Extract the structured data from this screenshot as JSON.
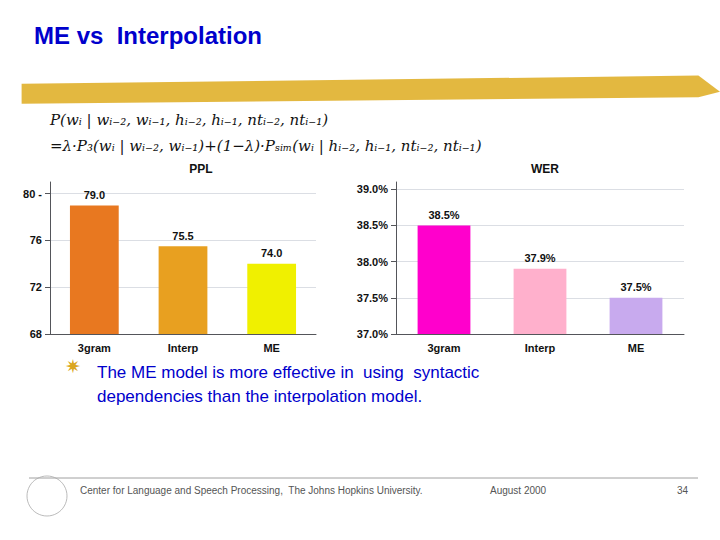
{
  "title": "ME vs  Interpolation",
  "annotations": [
    "P(wᵢ | wᵢ₋₂, wᵢ₋₁, hᵢ₋₂, hᵢ₋₁, ntᵢ₋₂, ntᵢ₋₁)",
    "=λ·P₃(wᵢ | wᵢ₋₂, wᵢ₋₁)+(1−λ)·Pₛᵢₘ(wᵢ | hᵢ₋₂, hᵢ₋₁, ntᵢ₋₂, ntᵢ₋₁)",
    "✷",
    "The ME model is more effective in  using  syntactic\ndependencies than the interpolation model.",
    "Center for Language and Speech Processing,  The Johns Hopkins University.",
    "August 2000",
    "34"
  ],
  "chart_data": [
    {
      "type": "bar",
      "title": "PPL",
      "categories": [
        "3gram",
        "Interp",
        "ME"
      ],
      "values": [
        79.0,
        75.5,
        74.0
      ],
      "value_labels": [
        "79.0",
        "75.5",
        "74.0"
      ],
      "colors": [
        "#E87820",
        "#E8A020",
        "#F0F000"
      ],
      "ylim": [
        68,
        81
      ],
      "yticks": [
        68,
        72,
        76,
        {
          "value": 80,
          "label": "80 -"
        }
      ],
      "grid": true,
      "data_labels": true
    },
    {
      "type": "bar",
      "title": "WER",
      "categories": [
        "3gram",
        "Interp",
        "ME"
      ],
      "values": [
        0.385,
        0.379,
        0.375
      ],
      "value_labels": [
        "38.5%",
        "37.9%",
        "37.5%"
      ],
      "colors": [
        "#FF00CC",
        "#FFB0CC",
        "#C8AAEE"
      ],
      "ylim": [
        0.37,
        0.391
      ],
      "yticks": [
        {
          "value": 0.37,
          "label": "37.0%"
        },
        {
          "value": 0.375,
          "label": "37.5%"
        },
        {
          "value": 0.38,
          "label": "38.0%"
        },
        {
          "value": 0.385,
          "label": "38.5%"
        },
        {
          "value": 0.39,
          "label": "39.0%"
        }
      ],
      "grid": true,
      "data_labels": true
    }
  ]
}
